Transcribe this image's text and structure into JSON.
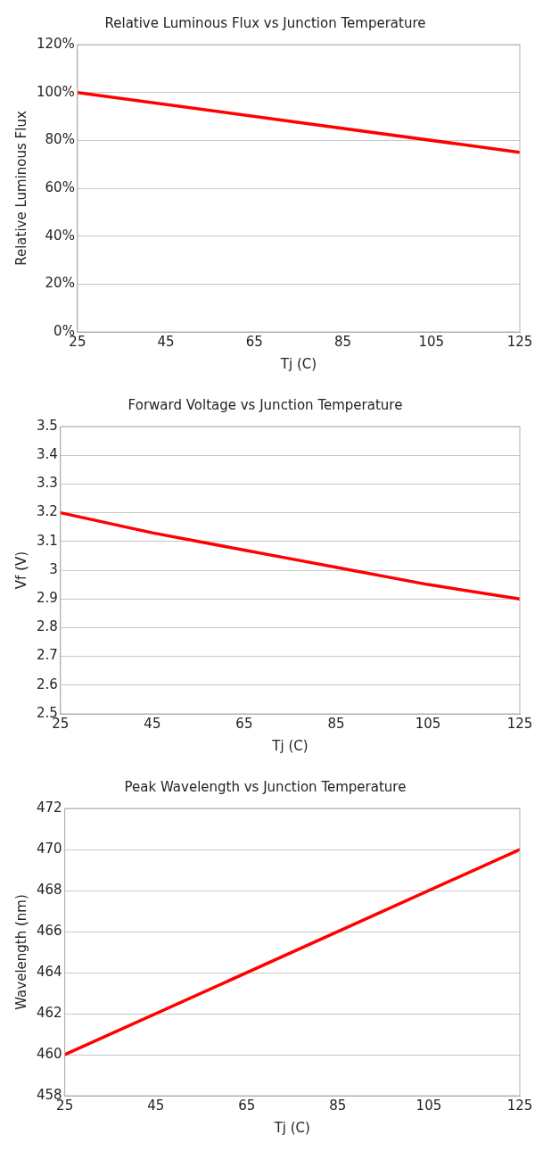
{
  "chart_data": [
    {
      "type": "line",
      "title": "Relative Luminous Flux vs Junction Temperature",
      "xlabel": "Tj (C)",
      "ylabel": "Relative Luminous Flux",
      "x": [
        25,
        125
      ],
      "series": [
        {
          "color": "#ff0000",
          "values": [
            100,
            75
          ]
        }
      ],
      "xlim": [
        25,
        125
      ],
      "xticks": [
        25,
        45,
        65,
        85,
        105,
        125
      ],
      "ylim": [
        0,
        120
      ],
      "yticks": [
        {
          "value": 0,
          "label": "0%"
        },
        {
          "value": 20,
          "label": "20%"
        },
        {
          "value": 40,
          "label": "40%"
        },
        {
          "value": 60,
          "label": "60%"
        },
        {
          "value": 80,
          "label": "80%"
        },
        {
          "value": 100,
          "label": "100%"
        },
        {
          "value": 120,
          "label": "120%"
        }
      ],
      "grid": "y",
      "legend": false,
      "marker": "none",
      "line_style": "solid"
    },
    {
      "type": "line",
      "title": "Forward Voltage vs Junction Temperature",
      "xlabel": "Tj (C)",
      "ylabel": "Vf (V)",
      "x": [
        25,
        45,
        65,
        75,
        85,
        105,
        125
      ],
      "series": [
        {
          "color": "#ff0000",
          "values": [
            3.2,
            3.13,
            3.07,
            3.04,
            3.01,
            2.95,
            2.9
          ]
        }
      ],
      "xlim": [
        25,
        125
      ],
      "xticks": [
        25,
        45,
        65,
        85,
        105,
        125
      ],
      "ylim": [
        2.5,
        3.5
      ],
      "yticks": [
        2.5,
        2.6,
        2.7,
        2.8,
        2.9,
        3,
        3.1,
        3.2,
        3.3,
        3.4,
        3.5
      ],
      "grid": "y",
      "legend": false,
      "marker": "none",
      "line_style": "solid"
    },
    {
      "type": "line",
      "title": "Peak Wavelength vs Junction Temperature",
      "xlabel": "Tj (C)",
      "ylabel": "Wavelength (nm)",
      "x": [
        25,
        125
      ],
      "series": [
        {
          "color": "#ff0000",
          "values": [
            460,
            470
          ]
        }
      ],
      "xlim": [
        25,
        125
      ],
      "xticks": [
        25,
        45,
        65,
        85,
        105,
        125
      ],
      "ylim": [
        458,
        472
      ],
      "yticks": [
        458,
        460,
        462,
        464,
        466,
        468,
        470,
        472
      ],
      "grid": "y",
      "legend": false,
      "marker": "none",
      "line_style": "solid"
    }
  ]
}
